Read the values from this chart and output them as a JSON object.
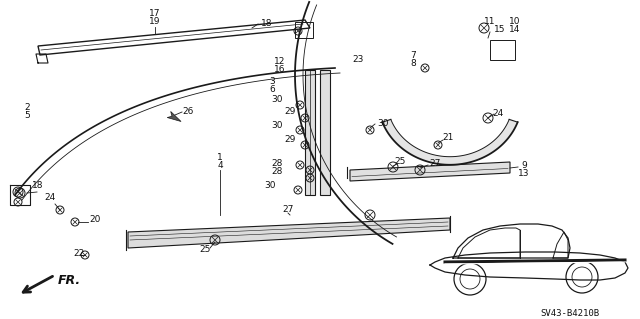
{
  "background_color": "#ffffff",
  "fig_width": 6.4,
  "fig_height": 3.19,
  "dpi": 100,
  "diagram_code": "SV43-B4210B",
  "line_color": "#1a1a1a",
  "text_color": "#111111",
  "part_fontsize": 6.5
}
